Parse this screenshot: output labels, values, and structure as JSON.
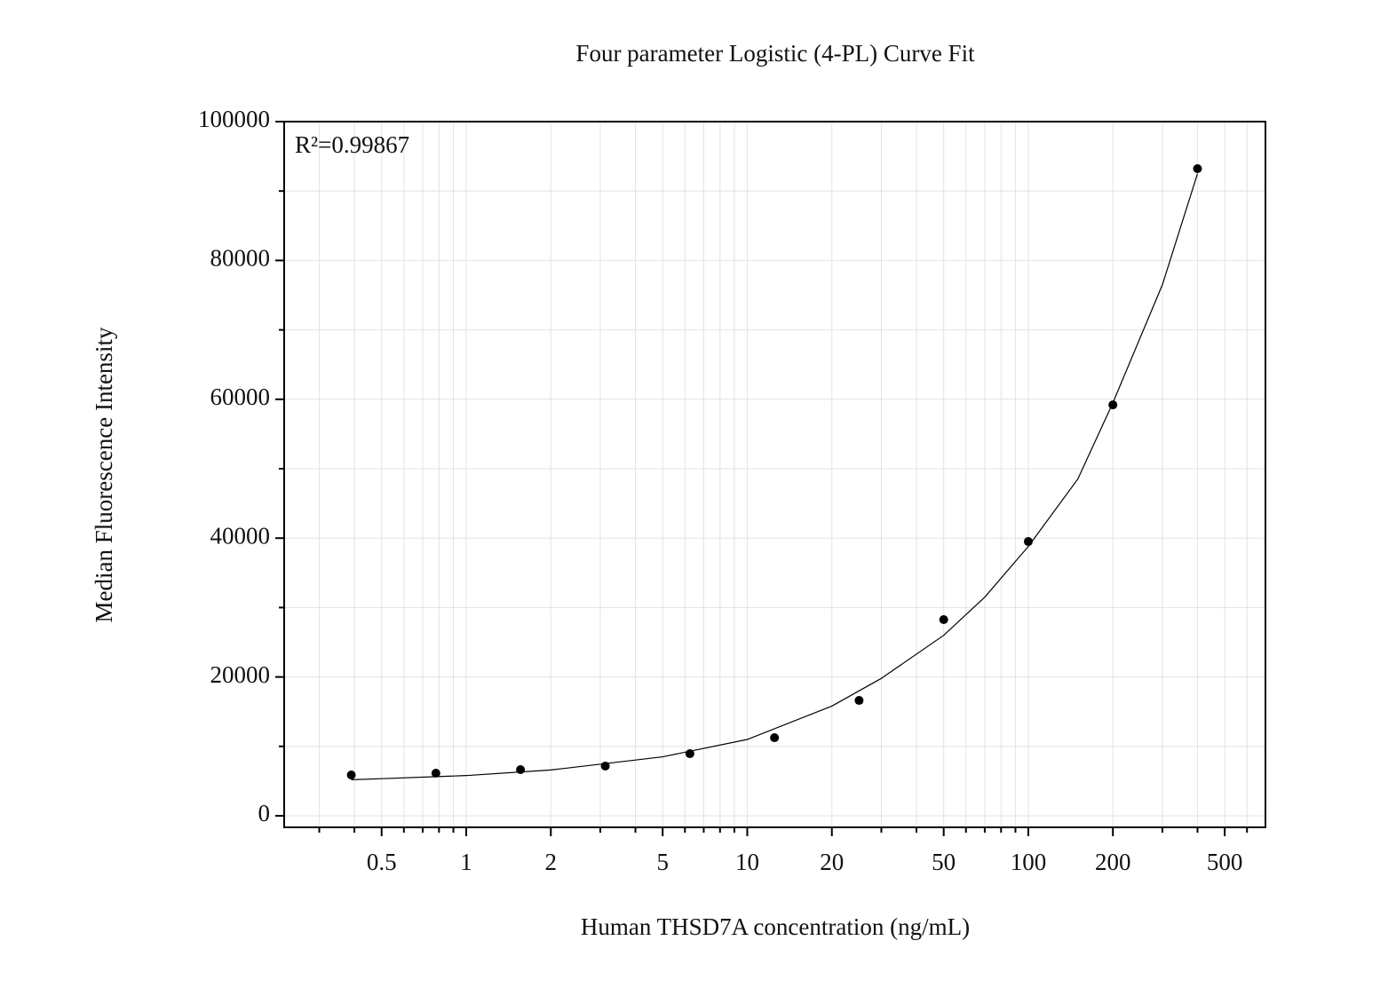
{
  "chart_data": {
    "type": "scatter",
    "title": "Four parameter Logistic (4-PL) Curve Fit",
    "x_label": "Human THSD7A concentration (ng/mL)",
    "y_label": "Median Fluorescence Intensity",
    "annotation": "R²=0.99867",
    "x": [
      0.39,
      0.78,
      1.56,
      3.125,
      6.25,
      12.5,
      25,
      50,
      100,
      200,
      400
    ],
    "values": [
      5880,
      6140,
      6650,
      7160,
      8950,
      11250,
      16620,
      28260,
      39510,
      59200,
      93220
    ],
    "color": "#000000",
    "fit": {
      "x": [
        0.39,
        0.5,
        1,
        2,
        5,
        10,
        20,
        30,
        50,
        70,
        100,
        150,
        200,
        300,
        400
      ],
      "values": [
        5200,
        5350,
        5800,
        6600,
        8500,
        11000,
        15800,
        19800,
        26000,
        31500,
        38800,
        48500,
        59500,
        76500,
        92500
      ]
    },
    "xlog": true,
    "xlim": [
      0.225,
      698
    ],
    "xticks": [
      0.5,
      1,
      2,
      5,
      10,
      20,
      50,
      100,
      200,
      500
    ],
    "xminorticks": [
      0.3,
      0.4,
      0.6,
      0.7,
      0.8,
      0.9,
      3,
      4,
      6,
      7,
      8,
      9,
      30,
      40,
      60,
      70,
      80,
      90,
      300,
      400,
      600
    ],
    "ylim": [
      -1660,
      100000
    ],
    "yticks": [
      0,
      20000,
      40000,
      60000,
      80000,
      100000
    ],
    "yminorticks": [
      10000,
      30000,
      50000,
      70000,
      90000
    ],
    "grid": true
  }
}
